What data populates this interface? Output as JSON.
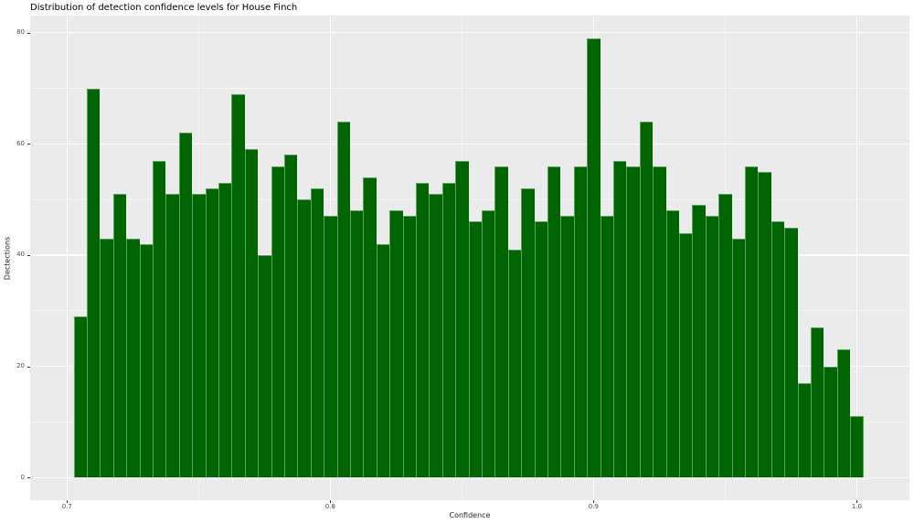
{
  "chart_data": {
    "type": "histogram",
    "title": "Distribution of detection confidence levels for House Finch",
    "xlabel": "Confidence",
    "ylabel": "Dectections",
    "bin_start": 0.7025,
    "bin_width": 0.005,
    "values": [
      29,
      70,
      43,
      51,
      43,
      42,
      57,
      51,
      62,
      51,
      52,
      53,
      69,
      59,
      40,
      56,
      58,
      50,
      52,
      47,
      64,
      48,
      54,
      42,
      48,
      47,
      53,
      51,
      53,
      57,
      46,
      48,
      56,
      41,
      52,
      46,
      56,
      47,
      56,
      79,
      47,
      57,
      56,
      64,
      56,
      48,
      44,
      49,
      47,
      51,
      43,
      56,
      55,
      46,
      45,
      17,
      27,
      20,
      23,
      11
    ],
    "x_ticks": [
      0.7,
      0.8,
      0.9,
      1.0
    ],
    "x_tick_labels": [
      "0.7",
      "0.8",
      "0.9",
      "1.0"
    ],
    "x_minor_ticks": [
      0.75,
      0.85,
      0.95
    ],
    "y_ticks": [
      0,
      20,
      40,
      60,
      80
    ],
    "y_tick_labels": [
      "0",
      "20",
      "40",
      "60",
      "80"
    ],
    "y_minor_ticks": [
      10,
      30,
      50,
      70
    ],
    "xlim": [
      0.686,
      1.02
    ],
    "ylim": [
      -4.06,
      83.07
    ],
    "grid": true,
    "legend": "none",
    "colors": {
      "bar_fill": "#006400",
      "bar_edge": "#5ca061",
      "panel_background": "#ebebeb",
      "grid_major": "#ffffff",
      "tick_label": "#4d4d4d",
      "tick_mark": "#333333",
      "title_text": "#000000"
    }
  }
}
